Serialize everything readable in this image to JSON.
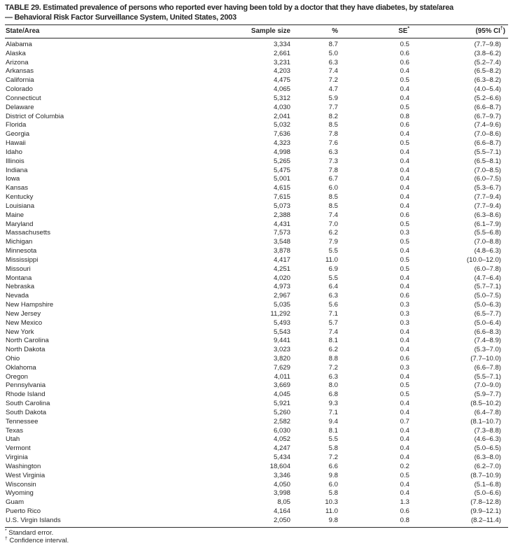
{
  "page": {
    "title_line1": "TABLE 29. Estimated prevalence of persons who reported ever having been told by a doctor that they have diabetes, by state/area",
    "title_line2": "— Behavioral Risk Factor Surveillance System, United States, 2003"
  },
  "table": {
    "columns": {
      "state": "State/Area",
      "sample": "Sample size",
      "pct": "%",
      "se_base": "SE",
      "se_sup": "*",
      "ci_pre": "(95% CI",
      "ci_sup": "†",
      "ci_post": ")"
    },
    "rows": [
      [
        "Alabama",
        "3,334",
        "8.7",
        "0.5",
        "(7.7–9.8)"
      ],
      [
        "Alaska",
        "2,661",
        "5.0",
        "0.6",
        "(3.8–6.2)"
      ],
      [
        "Arizona",
        "3,231",
        "6.3",
        "0.6",
        "(5.2–7.4)"
      ],
      [
        "Arkansas",
        "4,203",
        "7.4",
        "0.4",
        "(6.5–8.2)"
      ],
      [
        "California",
        "4,475",
        "7.2",
        "0.5",
        "(6.3–8.2)"
      ],
      [
        "Colorado",
        "4,065",
        "4.7",
        "0.4",
        "(4.0–5.4)"
      ],
      [
        "Connecticut",
        "5,312",
        "5.9",
        "0.4",
        "(5.2–6.6)"
      ],
      [
        "Delaware",
        "4,030",
        "7.7",
        "0.5",
        "(6.6–8.7)"
      ],
      [
        "District of Columbia",
        "2,041",
        "8.2",
        "0.8",
        "(6.7–9.7)"
      ],
      [
        "Florida",
        "5,032",
        "8.5",
        "0.6",
        "(7.4–9.6)"
      ],
      [
        "Georgia",
        "7,636",
        "7.8",
        "0.4",
        "(7.0–8.6)"
      ],
      [
        "Hawaii",
        "4,323",
        "7.6",
        "0.5",
        "(6.6–8.7)"
      ],
      [
        "Idaho",
        "4,998",
        "6.3",
        "0.4",
        "(5.5–7.1)"
      ],
      [
        "Illinois",
        "5,265",
        "7.3",
        "0.4",
        "(6.5–8.1)"
      ],
      [
        "Indiana",
        "5,475",
        "7.8",
        "0.4",
        "(7.0–8.5)"
      ],
      [
        "Iowa",
        "5,001",
        "6.7",
        "0.4",
        "(6.0–7.5)"
      ],
      [
        "Kansas",
        "4,615",
        "6.0",
        "0.4",
        "(5.3–6.7)"
      ],
      [
        "Kentucky",
        "7,615",
        "8.5",
        "0.4",
        "(7.7–9.4)"
      ],
      [
        "Louisiana",
        "5,073",
        "8.5",
        "0.4",
        "(7.7–9.4)"
      ],
      [
        "Maine",
        "2,388",
        "7.4",
        "0.6",
        "(6.3–8.6)"
      ],
      [
        "Maryland",
        "4,431",
        "7.0",
        "0.5",
        "(6.1–7.9)"
      ],
      [
        "Massachusetts",
        "7,573",
        "6.2",
        "0.3",
        "(5.5–6.8)"
      ],
      [
        "Michigan",
        "3,548",
        "7.9",
        "0.5",
        "(7.0–8.8)"
      ],
      [
        "Minnesota",
        "3,878",
        "5.5",
        "0.4",
        "(4.8–6.3)"
      ],
      [
        "Mississippi",
        "4,417",
        "11.0",
        "0.5",
        "(10.0–12.0)"
      ],
      [
        "Missouri",
        "4,251",
        "6.9",
        "0.5",
        "(6.0–7.8)"
      ],
      [
        "Montana",
        "4,020",
        "5.5",
        "0.4",
        "(4.7–6.4)"
      ],
      [
        "Nebraska",
        "4,973",
        "6.4",
        "0.4",
        "(5.7–7.1)"
      ],
      [
        "Nevada",
        "2,967",
        "6.3",
        "0.6",
        "(5.0–7.5)"
      ],
      [
        "New Hampshire",
        "5,035",
        "5.6",
        "0.3",
        "(5.0–6.3)"
      ],
      [
        "New Jersey",
        "11,292",
        "7.1",
        "0.3",
        "(6.5–7.7)"
      ],
      [
        "New Mexico",
        "5,493",
        "5.7",
        "0.3",
        "(5.0–6.4)"
      ],
      [
        "New York",
        "5,543",
        "7.4",
        "0.4",
        "(6.6–8.3)"
      ],
      [
        "North Carolina",
        "9,441",
        "8.1",
        "0.4",
        "(7.4–8.9)"
      ],
      [
        "North Dakota",
        "3,023",
        "6.2",
        "0.4",
        "(5.3–7.0)"
      ],
      [
        "Ohio",
        "3,820",
        "8.8",
        "0.6",
        "(7.7–10.0)"
      ],
      [
        "Oklahoma",
        "7,629",
        "7.2",
        "0.3",
        "(6.6–7.8)"
      ],
      [
        "Oregon",
        "4,011",
        "6.3",
        "0.4",
        "(5.5–7.1)"
      ],
      [
        "Pennsylvania",
        "3,669",
        "8.0",
        "0.5",
        "(7.0–9.0)"
      ],
      [
        "Rhode Island",
        "4,045",
        "6.8",
        "0.5",
        "(5.9–7.7)"
      ],
      [
        "South Carolina",
        "5,921",
        "9.3",
        "0.4",
        "(8.5–10.2)"
      ],
      [
        "South Dakota",
        "5,260",
        "7.1",
        "0.4",
        "(6.4–7.8)"
      ],
      [
        "Tennessee",
        "2,582",
        "9.4",
        "0.7",
        "(8.1–10.7)"
      ],
      [
        "Texas",
        "6,030",
        "8.1",
        "0.4",
        "(7.3–8.8)"
      ],
      [
        "Utah",
        "4,052",
        "5.5",
        "0.4",
        "(4.6–6.3)"
      ],
      [
        "Vermont",
        "4,247",
        "5.8",
        "0.4",
        "(5.0–6.5)"
      ],
      [
        "Virginia",
        "5,434",
        "7.2",
        "0.4",
        "(6.3–8.0)"
      ],
      [
        "Washington",
        "18,604",
        "6.6",
        "0.2",
        "(6.2–7.0)"
      ],
      [
        "West Virginia",
        "3,346",
        "9.8",
        "0.5",
        "(8.7–10.9)"
      ],
      [
        "Wisconsin",
        "4,050",
        "6.0",
        "0.4",
        "(5.1–6.8)"
      ],
      [
        "Wyoming",
        "3,998",
        "5.8",
        "0.4",
        "(5.0–6.6)"
      ],
      [
        "Guam",
        "8,05",
        "10.3",
        "1.3",
        "(7.8–12.8)"
      ],
      [
        "Puerto Rico",
        "4,164",
        "11.0",
        "0.6",
        "(9.9–12.1)"
      ],
      [
        "U.S. Virgin Islands",
        "2,050",
        "9.8",
        "0.8",
        "(8.2–11.4)"
      ]
    ]
  },
  "footnotes": [
    {
      "sup": "*",
      "text": " Standard error."
    },
    {
      "sup": "†",
      "text": " Confidence interval."
    }
  ]
}
